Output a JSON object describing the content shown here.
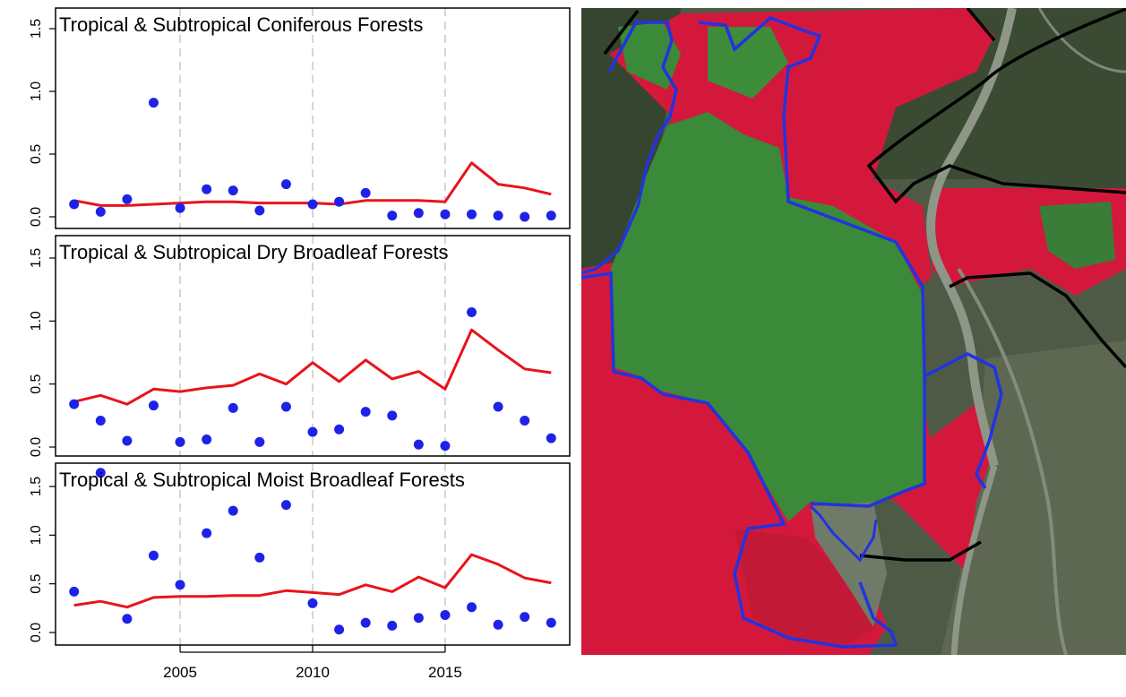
{
  "colors": {
    "line": "#e8141c",
    "points": "#1e22e8",
    "gridline": "#c8c8c8",
    "frame": "#000000",
    "map_red": "#d4183c",
    "map_green": "#3a8a3a",
    "map_background": "#4e5a46",
    "river": "#8e9688",
    "boundary_blue": "#2233e0",
    "boundary_black": "#000000"
  },
  "shared_x_axis": {
    "ticks": [
      2005,
      2010,
      2015
    ],
    "tick_labels": [
      "2005",
      "2010",
      "2015"
    ],
    "xlim": [
      2000.3,
      2019.7
    ]
  },
  "chart_data": [
    {
      "type": "line",
      "title": "Tropical & Subtropical Coniferous Forests",
      "xlabel": "",
      "ylabel": "",
      "ylim": [
        0,
        1.55
      ],
      "yticks": [
        0.0,
        0.5,
        1.0,
        1.5
      ],
      "ytick_labels": [
        "0.0",
        "0.5",
        "1.0",
        "1.5"
      ],
      "grid_x": [
        2005,
        2010,
        2015
      ],
      "x": [
        2001,
        2002,
        2003,
        2004,
        2005,
        2006,
        2007,
        2008,
        2009,
        2010,
        2011,
        2012,
        2013,
        2014,
        2015,
        2016,
        2017,
        2018,
        2019
      ],
      "series": [
        {
          "kind": "line",
          "values": [
            0.13,
            0.09,
            0.09,
            0.1,
            0.11,
            0.12,
            0.12,
            0.11,
            0.11,
            0.11,
            0.1,
            0.13,
            0.13,
            0.13,
            0.12,
            0.43,
            0.26,
            0.23,
            0.18
          ]
        },
        {
          "kind": "points",
          "values": [
            0.1,
            0.04,
            0.14,
            0.91,
            0.07,
            0.22,
            0.21,
            0.05,
            0.26,
            0.1,
            0.12,
            0.19,
            0.01,
            0.03,
            0.02,
            0.02,
            0.01,
            0.0,
            0.01
          ]
        }
      ]
    },
    {
      "type": "line",
      "title": "Tropical & Subtropical Dry Broadleaf Forests",
      "xlabel": "",
      "ylabel": "",
      "ylim": [
        0,
        1.55
      ],
      "yticks": [
        0.0,
        0.5,
        1.0,
        1.5
      ],
      "ytick_labels": [
        "0.0",
        "0.5",
        "1.0",
        "1.5"
      ],
      "grid_x": [
        2005,
        2010,
        2015
      ],
      "x": [
        2001,
        2002,
        2003,
        2004,
        2005,
        2006,
        2007,
        2008,
        2009,
        2010,
        2011,
        2012,
        2013,
        2014,
        2015,
        2016,
        2017,
        2018,
        2019
      ],
      "series": [
        {
          "kind": "line",
          "values": [
            0.36,
            0.41,
            0.34,
            0.46,
            0.44,
            0.47,
            0.49,
            0.58,
            0.5,
            0.67,
            0.52,
            0.69,
            0.54,
            0.6,
            0.46,
            0.93,
            0.77,
            0.62,
            0.59
          ]
        },
        {
          "kind": "points",
          "values": [
            0.34,
            0.21,
            0.05,
            0.33,
            0.04,
            0.06,
            0.31,
            0.04,
            0.32,
            0.12,
            0.14,
            0.28,
            0.25,
            0.02,
            0.01,
            1.07,
            0.32,
            0.21,
            0.07
          ]
        }
      ]
    },
    {
      "type": "line",
      "title": "Tropical & Subtropical Moist Broadleaf Forests",
      "xlabel": "",
      "ylabel": "",
      "ylim": [
        0,
        1.55
      ],
      "yticks": [
        0.0,
        0.5,
        1.0,
        1.5
      ],
      "ytick_labels": [
        "0.0",
        "0.5",
        "1.0",
        "1.5"
      ],
      "grid_x": [
        2005,
        2010,
        2015
      ],
      "x": [
        2001,
        2002,
        2003,
        2004,
        2005,
        2006,
        2007,
        2008,
        2009,
        2010,
        2011,
        2012,
        2013,
        2014,
        2015,
        2016,
        2017,
        2018,
        2019
      ],
      "series": [
        {
          "kind": "line",
          "values": [
            0.28,
            0.32,
            0.26,
            0.36,
            0.37,
            0.37,
            0.38,
            0.38,
            0.43,
            0.41,
            0.39,
            0.49,
            0.42,
            0.57,
            0.46,
            0.8,
            0.7,
            0.56,
            0.51
          ]
        },
        {
          "kind": "points",
          "values": [
            0.42,
            1.64,
            0.14,
            0.79,
            0.49,
            1.02,
            1.25,
            0.77,
            1.31,
            0.3,
            0.03,
            0.1,
            0.07,
            0.15,
            0.18,
            0.26,
            0.08,
            0.16,
            0.1
          ]
        }
      ]
    }
  ]
}
